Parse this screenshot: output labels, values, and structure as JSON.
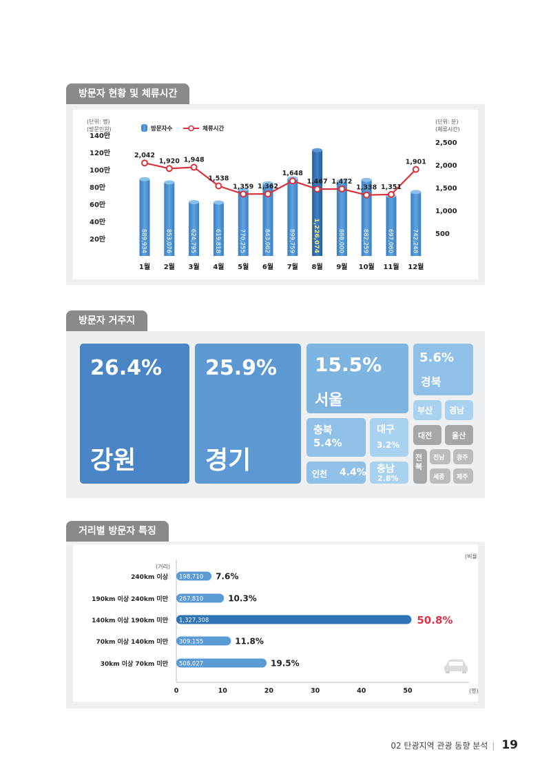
{
  "sections": {
    "visitors_title": "방문자 현황 및 체류시간",
    "residence_title": "방문자 거주지",
    "distance_title": "거리별 방문자 특징"
  },
  "footer": {
    "chapter": "02 탄광지역 관광 동향 분석",
    "page": "19"
  },
  "chart_data": [
    {
      "type": "bar+line",
      "unit_left": "(단위: 명)",
      "ylabel_left": "(방문인원)",
      "unit_right": "(단위: 분)",
      "ylabel_right": "(체류시간)",
      "categories": [
        "1월",
        "2월",
        "3월",
        "4월",
        "5월",
        "6월",
        "7월",
        "8월",
        "9월",
        "10월",
        "11월",
        "12월"
      ],
      "left_ticks": [
        "140만",
        "120만",
        "100만",
        "80만",
        "60만",
        "40만",
        "20만"
      ],
      "right_ticks": [
        "2,500",
        "2,000",
        "1,500",
        "1,000",
        "500"
      ],
      "ylim_left": [
        0,
        1400000
      ],
      "ylim_right": [
        0,
        2500
      ],
      "legend": {
        "bars": "방문자수",
        "line": "체류시간",
        "position": "top-left"
      },
      "series": [
        {
          "name": "방문자수",
          "type": "bar",
          "values": [
            889934,
            853076,
            624795,
            619818,
            770255,
            843062,
            899759,
            1226074,
            868000,
            882259,
            697060,
            742248
          ],
          "labels": [
            "889,934",
            "853,076",
            "624,795",
            "619,818",
            "770,255",
            "843,062",
            "899,759",
            "1,226,074",
            "868,000",
            "882,259",
            "697,060",
            "742,248"
          ]
        },
        {
          "name": "체류시간",
          "type": "line",
          "values": [
            2042,
            1920,
            1948,
            1538,
            1359,
            1362,
            1648,
            1467,
            1472,
            1338,
            1351,
            1901
          ],
          "labels": [
            "2,042",
            "1,920",
            "1,948",
            "1,538",
            "1,359",
            "1,362",
            "1,648",
            "1,467",
            "1,472",
            "1,338",
            "1,351",
            "1,901"
          ]
        }
      ],
      "colors": {
        "bar": "#4a8fcf",
        "bar_highlight": "#2f6fb3",
        "line": "#d9303a",
        "highlight_label": "#f3e27a"
      }
    },
    {
      "type": "treemap",
      "items": [
        {
          "region": "강원",
          "pct": "26.4%"
        },
        {
          "region": "경기",
          "pct": "25.9%"
        },
        {
          "region": "서울",
          "pct": "15.5%"
        },
        {
          "region": "경북",
          "pct": "5.6%"
        },
        {
          "region": "부산",
          "pct": ""
        },
        {
          "region": "경남",
          "pct": ""
        },
        {
          "region": "충북",
          "pct": "5.4%"
        },
        {
          "region": "대구",
          "pct": "3.2%"
        },
        {
          "region": "대전",
          "pct": ""
        },
        {
          "region": "울산",
          "pct": ""
        },
        {
          "region": "인천",
          "pct": "4.4%"
        },
        {
          "region": "충남",
          "pct": "2.8%"
        },
        {
          "region": "전북",
          "pct": ""
        },
        {
          "region": "전남",
          "pct": ""
        },
        {
          "region": "광주",
          "pct": ""
        },
        {
          "region": "세종",
          "pct": ""
        },
        {
          "region": "제주",
          "pct": ""
        }
      ]
    },
    {
      "type": "bar",
      "orientation": "horizontal",
      "ylabel": "(거리)",
      "xlabel": "(명)",
      "ratio_label": "(비율)",
      "categories": [
        "240km 이상",
        "190km 이상 240km 미만",
        "140km 이상 190km 미만",
        "70km 이상 140km 미만",
        "30km 이상 70km 미만"
      ],
      "values": [
        7.6,
        10.3,
        50.8,
        11.8,
        19.5
      ],
      "pct_labels": [
        "7.6%",
        "10.3%",
        "50.8%",
        "11.8%",
        "19.5%"
      ],
      "counts": [
        "198,710",
        "267,810",
        "1,327,308",
        "309,155",
        "508,027"
      ],
      "xticks": [
        "0",
        "10",
        "20",
        "30",
        "40",
        "50"
      ],
      "xlim": [
        0,
        50
      ],
      "colors": {
        "bar": "#5b9bd5",
        "bar_highlight": "#2e74b5",
        "highlight_label": "#e0304a"
      }
    }
  ]
}
